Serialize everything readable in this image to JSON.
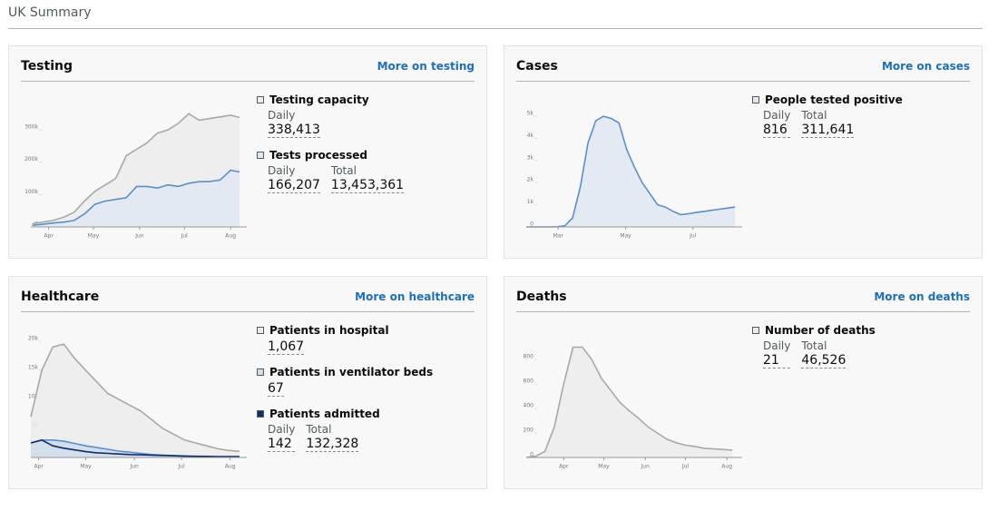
{
  "header": {
    "title": "UK Summary"
  },
  "cards": [
    {
      "title": "Testing",
      "link": "More on testing",
      "chart": {
        "type": "area",
        "x": [
          81,
          88,
          95,
          102,
          109,
          116,
          123,
          130,
          137,
          144,
          151,
          158,
          165,
          172,
          179,
          186,
          193,
          200,
          207,
          214,
          220
        ],
        "xlim": [
          80,
          220
        ],
        "xticks": [
          {
            "value": 92,
            "label": "Apr"
          },
          {
            "value": 122,
            "label": "May"
          },
          {
            "value": 153,
            "label": "Jun"
          },
          {
            "value": 183,
            "label": "Jul"
          },
          {
            "value": 214,
            "label": "Aug"
          }
        ],
        "ylim": [
          0,
          390000
        ],
        "yticks": [
          0,
          {
            "value": 100000,
            "label": "100k"
          },
          {
            "value": 200000,
            "label": "200k"
          },
          {
            "value": 300000,
            "label": "300k"
          }
        ],
        "series": [
          {
            "name": "Testing capacity",
            "color": "#a8a8a8",
            "fill": "#ececec",
            "values": [
              10000,
              15000,
              20000,
              30000,
              45000,
              80000,
              110000,
              130000,
              150000,
              220000,
              240000,
              260000,
              290000,
              300000,
              320000,
              350000,
              330000,
              335000,
              340000,
              345000,
              338413
            ],
            "stats": [
              {
                "label": "Daily",
                "value": "338,413"
              }
            ]
          },
          {
            "name": "Tests processed",
            "color": "#5b8fc9",
            "fill": "#dfe8f3",
            "values": [
              5000,
              8000,
              12000,
              15000,
              20000,
              40000,
              70000,
              80000,
              85000,
              90000,
              125000,
              125000,
              120000,
              130000,
              125000,
              135000,
              140000,
              140000,
              145000,
              175000,
              170000
            ],
            "stats": [
              {
                "label": "Daily",
                "value": "166,207"
              },
              {
                "label": "Total",
                "value": "13,453,361"
              }
            ]
          }
        ]
      }
    },
    {
      "title": "Cases",
      "link": "More on cases",
      "chart": {
        "type": "area",
        "x": [
          31,
          38,
          45,
          52,
          59,
          66,
          73,
          80,
          87,
          94,
          101,
          108,
          115,
          122,
          129,
          136,
          143,
          150,
          157,
          164,
          171,
          178,
          185,
          192,
          199,
          206,
          213,
          220
        ],
        "xlim": [
          31,
          220
        ],
        "xticks": [
          {
            "value": 60,
            "label": "Mar"
          },
          {
            "value": 121,
            "label": "May"
          },
          {
            "value": 182,
            "label": "Jul"
          }
        ],
        "ylim": [
          0,
          5700
        ],
        "yticks": [
          0,
          {
            "value": 1000,
            "label": "1k"
          },
          {
            "value": 2000,
            "label": "2k"
          },
          {
            "value": 3000,
            "label": "3k"
          },
          {
            "value": 4000,
            "label": "4k"
          },
          {
            "value": 5000,
            "label": "5k"
          }
        ],
        "series": [
          {
            "name": "People tested positive",
            "color": "#5b8fc9",
            "fill": "#dfe8f3",
            "values": [
              0,
              0,
              0,
              0,
              10,
              50,
              400,
              1800,
              3800,
              4800,
              5000,
              4900,
              4700,
              3500,
              2700,
              2000,
              1500,
              1000,
              900,
              700,
              550,
              600,
              650,
              700,
              750,
              800,
              850,
              900
            ],
            "stats": [
              {
                "label": "Daily",
                "value": "816"
              },
              {
                "label": "Total",
                "value": "311,641"
              }
            ]
          }
        ]
      }
    },
    {
      "title": "Healthcare",
      "link": "More on healthcare",
      "chart": {
        "type": "area",
        "x": [
          87,
          94,
          101,
          108,
          115,
          122,
          129,
          136,
          143,
          150,
          157,
          164,
          171,
          178,
          185,
          192,
          199,
          206,
          213,
          220
        ],
        "xlim": [
          87,
          220
        ],
        "xticks": [
          {
            "value": 92,
            "label": "Apr"
          },
          {
            "value": 122,
            "label": "May"
          },
          {
            "value": 153,
            "label": "Jun"
          },
          {
            "value": 183,
            "label": "Jul"
          },
          {
            "value": 214,
            "label": "Aug"
          }
        ],
        "ylim": [
          0,
          21700
        ],
        "yticks": [
          0,
          {
            "value": 5000,
            "label": "5k"
          },
          {
            "value": 10000,
            "label": "10k"
          },
          {
            "value": 15000,
            "label": "15k"
          },
          {
            "value": 20000,
            "label": "20k"
          }
        ],
        "series": [
          {
            "name": "Patients in hospital",
            "color": "#a8a8a8",
            "fill": "#ececec",
            "values": [
              7000,
              15000,
              19000,
              19500,
              17000,
              15000,
              13000,
              11000,
              10000,
              9000,
              8000,
              6500,
              5000,
              4000,
              3000,
              2500,
              2000,
              1500,
              1200,
              1067
            ],
            "stats": [
              {
                "value": "1,067"
              }
            ]
          },
          {
            "name": "Patients in ventilator beds",
            "color": "#5b8fc9",
            "fill": "#cfdcec",
            "values": [
              2500,
              3000,
              3000,
              2800,
              2400,
              2000,
              1700,
              1400,
              1100,
              900,
              700,
              500,
              400,
              300,
              200,
              150,
              120,
              100,
              80,
              67
            ],
            "stats": [
              {
                "value": "67"
              }
            ]
          },
          {
            "name": "Patients admitted",
            "color": "#0b2f6b",
            "values": [
              2500,
              3000,
              2000,
              1600,
              1300,
              1000,
              800,
              700,
              600,
              500,
              450,
              400,
              350,
              300,
              250,
              200,
              180,
              160,
              150,
              142
            ],
            "stats": [
              {
                "label": "Daily",
                "value": "142"
              },
              {
                "label": "Total",
                "value": "132,328"
              }
            ]
          }
        ]
      }
    },
    {
      "title": "Deaths",
      "link": "More on deaths",
      "chart": {
        "type": "area",
        "x": [
          64,
          71,
          78,
          85,
          92,
          99,
          106,
          113,
          120,
          127,
          134,
          141,
          148,
          155,
          162,
          169,
          176,
          183,
          190,
          197,
          204,
          211,
          218
        ],
        "xlim": [
          64,
          220
        ],
        "xticks": [
          {
            "value": 92,
            "label": "Apr"
          },
          {
            "value": 122,
            "label": "May"
          },
          {
            "value": 153,
            "label": "Jun"
          },
          {
            "value": 183,
            "label": "Jul"
          },
          {
            "value": 214,
            "label": "Aug"
          }
        ],
        "ylim": [
          0,
          1030
        ],
        "yticks": [
          0,
          200,
          400,
          600,
          800
        ],
        "series": [
          {
            "name": "Number of deaths",
            "color": "#a8a8a8",
            "fill": "#ececec",
            "values": [
              0,
              10,
              50,
              250,
              600,
              900,
              900,
              800,
              650,
              550,
              450,
              380,
              320,
              250,
              200,
              150,
              120,
              100,
              90,
              75,
              70,
              65,
              60
            ],
            "stats": [
              {
                "label": "Daily",
                "value": "21"
              },
              {
                "label": "Total",
                "value": "46,526"
              }
            ]
          }
        ]
      }
    }
  ]
}
